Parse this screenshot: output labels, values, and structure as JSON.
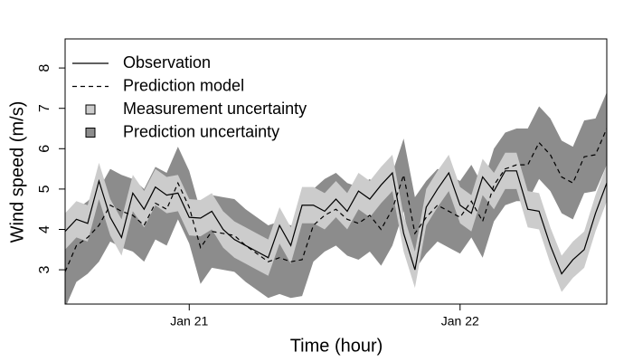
{
  "chart_data": {
    "type": "line",
    "xlabel": "Time (hour)",
    "ylabel": "Wind speed (m/s)",
    "x": [
      0,
      1,
      2,
      3,
      4,
      5,
      6,
      7,
      8,
      9,
      10,
      11,
      12,
      13,
      14,
      15,
      16,
      17,
      18,
      19,
      20,
      21,
      22,
      23,
      24,
      25,
      26,
      27,
      28,
      29,
      30,
      31,
      32,
      33,
      34,
      35,
      36,
      37,
      38,
      39,
      40,
      41,
      42,
      43,
      44,
      45,
      46,
      47,
      48
    ],
    "xlim": [
      0,
      48
    ],
    "xticks": [
      {
        "value": 11,
        "label": "Jan 21"
      },
      {
        "value": 35,
        "label": "Jan 22"
      }
    ],
    "ylim": [
      2.15,
      8.72
    ],
    "yticks": [
      3,
      4,
      5,
      6,
      7,
      8
    ],
    "legend": "top-left",
    "series": [
      {
        "name": "Observation",
        "color": "#000000",
        "dash": "solid",
        "values": [
          3.95,
          4.25,
          4.15,
          5.2,
          4.3,
          3.8,
          4.9,
          4.5,
          5.05,
          4.85,
          4.9,
          4.3,
          4.28,
          4.45,
          4.0,
          3.75,
          3.6,
          3.45,
          3.3,
          4.1,
          3.6,
          4.6,
          4.6,
          4.45,
          4.75,
          4.45,
          4.95,
          4.75,
          5.1,
          5.4,
          3.9,
          3.0,
          4.55,
          5.0,
          5.4,
          4.6,
          4.4,
          5.3,
          4.95,
          5.45,
          5.45,
          4.5,
          4.45,
          3.6,
          2.9,
          3.25,
          3.5,
          4.4,
          5.15
        ],
        "band": {
          "name": "Measurement uncertainty",
          "color": "#cccccc",
          "error": 0.45
        }
      },
      {
        "name": "Prediction model",
        "color": "#000000",
        "dash": "dashed",
        "values": [
          2.95,
          3.6,
          3.8,
          4.1,
          4.6,
          4.45,
          4.35,
          4.1,
          4.65,
          4.5,
          5.15,
          4.55,
          3.55,
          3.95,
          3.9,
          3.85,
          3.6,
          3.4,
          3.2,
          3.3,
          3.2,
          3.25,
          4.1,
          4.35,
          4.5,
          4.25,
          4.15,
          4.35,
          4.0,
          4.5,
          5.35,
          3.9,
          4.3,
          4.6,
          4.45,
          4.3,
          4.7,
          4.2,
          5.1,
          5.5,
          5.6,
          5.6,
          6.15,
          5.85,
          5.3,
          5.15,
          5.8,
          5.85,
          6.5
        ],
        "band": {
          "name": "Prediction uncertainty",
          "color": "#8c8c8c",
          "error": 0.9
        }
      }
    ]
  }
}
